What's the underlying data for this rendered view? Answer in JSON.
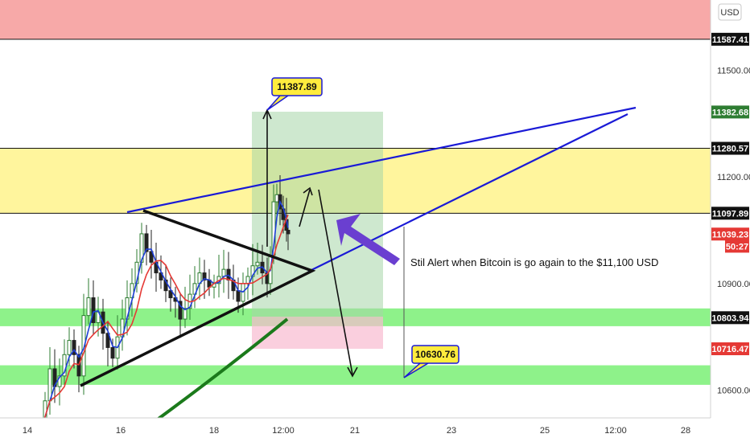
{
  "chart_data": {
    "type": "candlestick",
    "currency_badge": "USD",
    "y_ticks": [
      "11500.00",
      "11200.00",
      "10900.00",
      "10600.00"
    ],
    "y_tick_values": [
      11500,
      11200,
      10900,
      10600
    ],
    "x_ticks": [
      "14",
      "16",
      "18",
      "12:00",
      "21",
      "23",
      "25",
      "12:00",
      "28"
    ],
    "price_tags": [
      {
        "label": "11587.41",
        "value": 11587.41,
        "bg": "#111111",
        "fg": "#ffffff"
      },
      {
        "label": "11382.68",
        "value": 11382.68,
        "bg": "#2e7d32",
        "fg": "#ffffff"
      },
      {
        "label": "11280.57",
        "value": 11280.57,
        "bg": "#111111",
        "fg": "#ffffff"
      },
      {
        "label": "11097.89",
        "value": 11097.89,
        "bg": "#111111",
        "fg": "#ffffff"
      },
      {
        "label": "11039.23",
        "value": 11039.23,
        "bg": "#e53935",
        "fg": "#ffffff"
      },
      {
        "label": "50:27",
        "value": 11005,
        "bg": "#e53935",
        "fg": "#ffffff"
      },
      {
        "label": "10803.94",
        "value": 10803.94,
        "bg": "#111111",
        "fg": "#ffffff"
      },
      {
        "label": "10716.47",
        "value": 10716.47,
        "bg": "#e53935",
        "fg": "#ffffff"
      }
    ],
    "zones": [
      {
        "name": "resistance-top",
        "from": 11587.41,
        "to": 11760,
        "color": "#f7a9a8"
      },
      {
        "name": "resistance-mid",
        "from": 11097.89,
        "to": 11280.57,
        "color": "#fff59d"
      },
      {
        "name": "support-upper",
        "from": 10780,
        "to": 10830,
        "color": "#8ef28a"
      },
      {
        "name": "support-lower",
        "from": 10615,
        "to": 10670,
        "color": "#8ef28a"
      }
    ],
    "callouts": [
      {
        "label": "11387.89",
        "value": 11387.89
      },
      {
        "label": "10630.76",
        "value": 10630.76
      }
    ],
    "annotation": "Stil Alert when Bitcoin is go again to the $11,100 USD",
    "colors": {
      "blue_line": "#1a1ad6",
      "black_line": "#111111",
      "ema_fast": "#1f3fd6",
      "ema_slow": "#e53935",
      "ma_long": "#1b7a1b",
      "arrow_purple": "#6a3fd0",
      "target_box": "#a5d6a7",
      "stop_box": "#f8bbd0"
    }
  }
}
